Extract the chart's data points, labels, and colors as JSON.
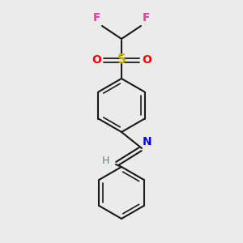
{
  "background_color": "#ebebeb",
  "atom_colors": {
    "F": "#e040a0",
    "S": "#ccaa00",
    "O": "#ff0000",
    "N": "#0000ff",
    "C": "#000000",
    "H": "#4a8f8f"
  },
  "bond_color": "#1a1a1a",
  "figsize": [
    3.0,
    3.0
  ],
  "dpi": 100,
  "lw": 1.5,
  "lw_inner": 1.2
}
